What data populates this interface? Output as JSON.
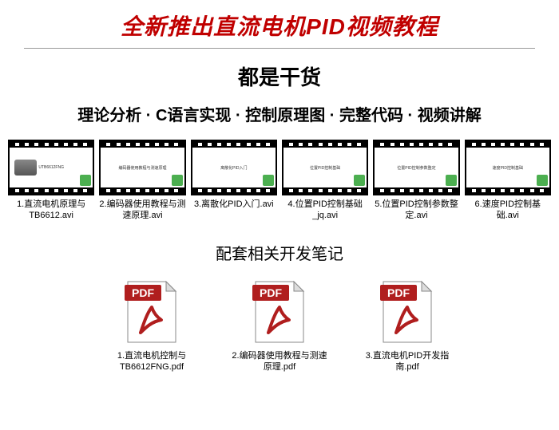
{
  "header": {
    "main_title": "全新推出直流电机PID视频教程",
    "sub_title": "都是干货",
    "tagline": "理论分析 · C语言实现 · 控制原理图 · 完整代码 · 视频讲解"
  },
  "colors": {
    "title_red": "#c00000",
    "pdf_red": "#b01e1e",
    "badge_green": "#4caf50",
    "divider": "#999999"
  },
  "videos": [
    {
      "label": "1.直流电机原理与TB6612.avi",
      "thumb_hint": "UTB6612FNG",
      "has_motor": true
    },
    {
      "label": "2.编码器使用教程与测速原理.avi",
      "thumb_hint": "编码器使用教程与测速原理",
      "has_motor": false
    },
    {
      "label": "3.离散化PID入门.avi",
      "thumb_hint": "离散化PID入门",
      "has_motor": false
    },
    {
      "label": "4.位置PID控制基础_jq.avi",
      "thumb_hint": "位置PID控制基础",
      "has_motor": false
    },
    {
      "label": "5.位置PID控制参数整定.avi",
      "thumb_hint": "位置PID控制参数整定",
      "has_motor": false
    },
    {
      "label": "6.速度PID控制基础.avi",
      "thumb_hint": "速度PID控制基础",
      "has_motor": false
    }
  ],
  "pdf_section": {
    "title": "配套相关开发笔记"
  },
  "pdfs": [
    {
      "label": "1.直流电机控制与TB6612FNG.pdf",
      "badge": "PDF"
    },
    {
      "label": "2.编码器使用教程与测速原理.pdf",
      "badge": "PDF"
    },
    {
      "label": "3.直流电机PID开发指南.pdf",
      "badge": "PDF"
    }
  ]
}
